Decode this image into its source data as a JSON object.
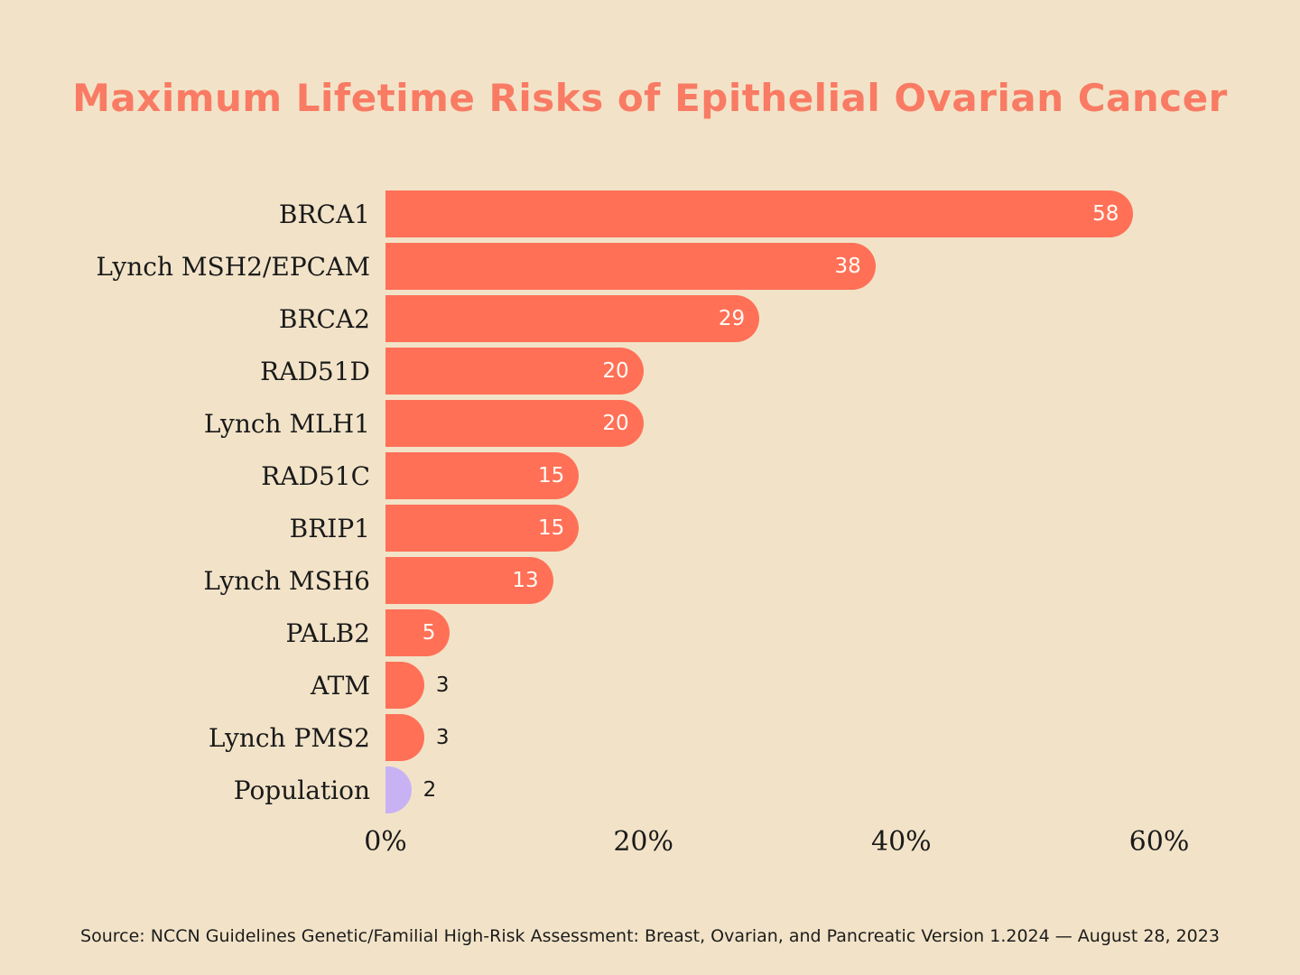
{
  "colors": {
    "background": "#F2E3C8",
    "bar": "#FF7057",
    "population_bar": "#C9B2F4",
    "title": "#F97B64",
    "text": "#1A1A1A",
    "value_inside": "#FFFDF6"
  },
  "source_note": "Source: NCCN Guidelines Genetic/Familial High-Risk Assessment: Breast, Ovarian, and Pancreatic Version 1.2024 — August 28, 2023",
  "chart_data": {
    "type": "bar",
    "orientation": "horizontal",
    "title": "Maximum Lifetime Risks of Epithelial Ovarian Cancer",
    "unit": "%",
    "xlim": [
      0,
      60
    ],
    "x_tick_values": [
      0,
      20,
      40,
      60
    ],
    "x_tick_labels": [
      "0%",
      "20%",
      "40%",
      "60%"
    ],
    "grid": false,
    "legend": false,
    "categories": [
      "BRCA1",
      "Lynch MSH2/EPCAM",
      "BRCA2",
      "RAD51D",
      "Lynch MLH1",
      "RAD51C",
      "BRIP1",
      "Lynch MSH6",
      "PALB2",
      "ATM",
      "Lynch PMS2",
      "Population"
    ],
    "values": [
      58,
      38,
      29,
      20,
      20,
      15,
      15,
      13,
      5,
      3,
      3,
      2
    ],
    "bar_colors": [
      "#FF7057",
      "#FF7057",
      "#FF7057",
      "#FF7057",
      "#FF7057",
      "#FF7057",
      "#FF7057",
      "#FF7057",
      "#FF7057",
      "#FF7057",
      "#FF7057",
      "#C9B2F4"
    ]
  }
}
